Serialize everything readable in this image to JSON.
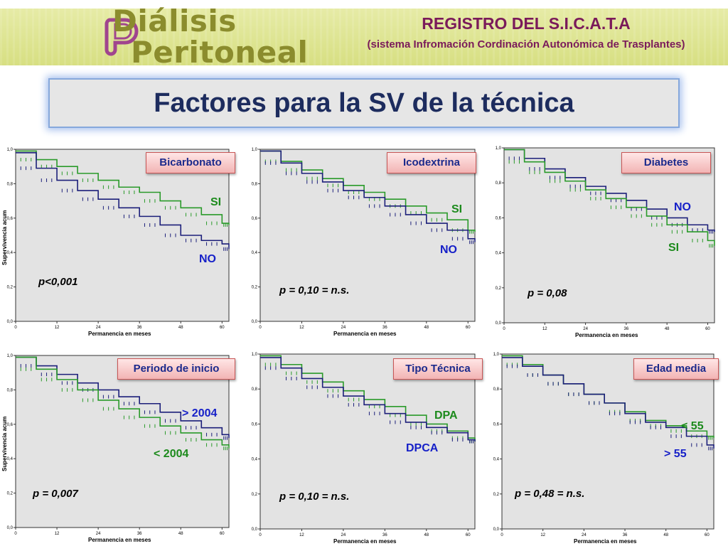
{
  "header": {
    "logo_line1": "Diálisis",
    "logo_line2": "Peritoneal",
    "registry_title": "REGISTRO DEL S.I.C.A.T.A",
    "registry_subtitle": "(sistema Infromación Cordinación Autonómica de Trasplantes)"
  },
  "main_title": "Factores para la SV de la técnica",
  "colors": {
    "green_series": "#2a9a2a",
    "blue_series": "#1c1f7a",
    "blue_text": "#1620c8",
    "green_text": "#1c8a1c",
    "plot_bg": "#e3e3e3"
  },
  "chart_data": [
    {
      "type": "line",
      "title": "Bicarbonato",
      "ylabel": "Supervivencia acum",
      "xlabel": "Permanencia en meses",
      "xlim": [
        0,
        62
      ],
      "ylim": [
        0,
        1.0
      ],
      "xticks": [
        "0",
        "12",
        "24",
        "36",
        "48",
        "60"
      ],
      "yticks": [
        "0,0",
        "0,2",
        "0,4",
        "0,6",
        "0,8",
        "1,0"
      ],
      "p_value": "p<0,001",
      "series": [
        {
          "name": "SI",
          "color": "green",
          "x": [
            0,
            6,
            12,
            18,
            24,
            30,
            36,
            42,
            48,
            54,
            60,
            62
          ],
          "y": [
            0.99,
            0.94,
            0.9,
            0.86,
            0.82,
            0.78,
            0.75,
            0.7,
            0.66,
            0.62,
            0.57,
            0.56
          ]
        },
        {
          "name": "NO",
          "color": "blue",
          "x": [
            0,
            6,
            12,
            18,
            24,
            30,
            36,
            42,
            48,
            54,
            60,
            62
          ],
          "y": [
            0.98,
            0.89,
            0.82,
            0.76,
            0.71,
            0.66,
            0.61,
            0.56,
            0.5,
            0.47,
            0.45,
            0.42
          ]
        }
      ]
    },
    {
      "type": "line",
      "title": "Icodextrina",
      "ylabel": "",
      "xlabel": "Permanencia en meses",
      "xlim": [
        0,
        62
      ],
      "ylim": [
        0,
        1.0
      ],
      "xticks": [
        "0",
        "12",
        "24",
        "36",
        "48",
        "60"
      ],
      "yticks": [
        "0,0",
        "0,2",
        "0,4",
        "0,6",
        "0,8",
        "1,0"
      ],
      "p_value": "p = 0,10 = n.s.",
      "series": [
        {
          "name": "SI",
          "color": "green",
          "x": [
            0,
            6,
            12,
            18,
            24,
            30,
            36,
            42,
            48,
            54,
            60,
            62
          ],
          "y": [
            0.99,
            0.93,
            0.88,
            0.83,
            0.79,
            0.75,
            0.71,
            0.67,
            0.63,
            0.59,
            0.53,
            0.52
          ]
        },
        {
          "name": "NO",
          "color": "blue",
          "x": [
            0,
            6,
            12,
            18,
            24,
            30,
            36,
            42,
            48,
            54,
            60,
            62
          ],
          "y": [
            0.99,
            0.92,
            0.86,
            0.81,
            0.76,
            0.72,
            0.67,
            0.62,
            0.57,
            0.53,
            0.48,
            0.46
          ]
        }
      ]
    },
    {
      "type": "line",
      "title": "Diabetes",
      "ylabel": "",
      "xlabel": "Permanencia en meses",
      "xlim": [
        0,
        62
      ],
      "ylim": [
        0,
        1.0
      ],
      "xticks": [
        "0",
        "12",
        "24",
        "36",
        "48",
        "60"
      ],
      "yticks": [
        "0,0",
        "0,2",
        "0,4",
        "0,6",
        "0,8",
        "1,0"
      ],
      "p_value": "p = 0,08",
      "series": [
        {
          "name": "NO",
          "color": "blue",
          "x": [
            0,
            6,
            12,
            18,
            24,
            30,
            36,
            42,
            48,
            54,
            60,
            62
          ],
          "y": [
            0.99,
            0.94,
            0.88,
            0.83,
            0.78,
            0.74,
            0.7,
            0.65,
            0.6,
            0.56,
            0.53,
            0.52
          ]
        },
        {
          "name": "SI",
          "color": "green",
          "x": [
            0,
            6,
            12,
            18,
            24,
            30,
            36,
            42,
            48,
            54,
            60,
            62
          ],
          "y": [
            0.99,
            0.92,
            0.86,
            0.81,
            0.76,
            0.71,
            0.66,
            0.61,
            0.56,
            0.52,
            0.47,
            0.44
          ]
        }
      ]
    },
    {
      "type": "line",
      "title": "Periodo de inicio",
      "ylabel": "Supervivencia acum",
      "xlabel": "Permanencia en meses",
      "xlim": [
        0,
        62
      ],
      "ylim": [
        0,
        1.0
      ],
      "xticks": [
        "0",
        "12",
        "24",
        "36",
        "48",
        "60"
      ],
      "yticks": [
        "0,0",
        "0,2",
        "0,4",
        "0,6",
        "0,8",
        "1,0"
      ],
      "p_value": "p = 0,007",
      "series": [
        {
          "name": "> 2004",
          "color": "blue",
          "x": [
            0,
            6,
            12,
            18,
            24,
            30,
            36,
            42,
            48,
            54,
            60,
            62
          ],
          "y": [
            0.99,
            0.94,
            0.89,
            0.84,
            0.8,
            0.76,
            0.72,
            0.67,
            0.62,
            0.58,
            0.54,
            0.52
          ]
        },
        {
          "name": "< 2004",
          "color": "green",
          "x": [
            0,
            6,
            12,
            18,
            24,
            30,
            36,
            42,
            48,
            54,
            60,
            62
          ],
          "y": [
            0.99,
            0.92,
            0.86,
            0.8,
            0.74,
            0.69,
            0.64,
            0.59,
            0.55,
            0.51,
            0.48,
            0.46
          ]
        }
      ]
    },
    {
      "type": "line",
      "title": "Tipo Técnica",
      "ylabel": "",
      "xlabel": "Permanencia en meses",
      "xlim": [
        0,
        62
      ],
      "ylim": [
        0,
        1.0
      ],
      "xticks": [
        "0",
        "12",
        "24",
        "36",
        "48",
        "60"
      ],
      "yticks": [
        "0,0",
        "0,2",
        "0,4",
        "0,6",
        "0,8",
        "1,0"
      ],
      "p_value": "p = 0,10 = n.s.",
      "series": [
        {
          "name": "DPA",
          "color": "green",
          "x": [
            0,
            6,
            12,
            18,
            24,
            30,
            36,
            42,
            48,
            54,
            60,
            62
          ],
          "y": [
            0.99,
            0.94,
            0.89,
            0.84,
            0.79,
            0.74,
            0.7,
            0.65,
            0.6,
            0.56,
            0.52,
            0.5
          ]
        },
        {
          "name": "DPCA",
          "color": "blue",
          "x": [
            0,
            6,
            12,
            18,
            24,
            30,
            36,
            42,
            48,
            54,
            60,
            62
          ],
          "y": [
            0.98,
            0.92,
            0.86,
            0.81,
            0.76,
            0.71,
            0.66,
            0.61,
            0.58,
            0.55,
            0.51,
            0.5
          ]
        }
      ]
    },
    {
      "type": "line",
      "title": "Edad media",
      "ylabel": "",
      "xlabel": "Permanencia en meses",
      "xlim": [
        0,
        62
      ],
      "ylim": [
        0,
        1.0
      ],
      "xticks": [
        "0",
        "12",
        "24",
        "36",
        "48",
        "60"
      ],
      "yticks": [
        "0,0",
        "0,2",
        "0,4",
        "0,6",
        "0,8",
        "1,0"
      ],
      "p_value": "p = 0,48 = n.s.",
      "series": [
        {
          "name": "< 55",
          "color": "green",
          "x": [
            0,
            6,
            12,
            18,
            24,
            30,
            36,
            42,
            48,
            54,
            60,
            62
          ],
          "y": [
            0.99,
            0.94,
            0.88,
            0.83,
            0.77,
            0.72,
            0.67,
            0.62,
            0.59,
            0.56,
            0.53,
            0.52
          ]
        },
        {
          "name": "> 55",
          "color": "blue",
          "x": [
            0,
            6,
            12,
            18,
            24,
            30,
            36,
            42,
            48,
            54,
            60,
            62
          ],
          "y": [
            0.98,
            0.93,
            0.88,
            0.83,
            0.77,
            0.72,
            0.66,
            0.61,
            0.58,
            0.53,
            0.48,
            0.46
          ]
        }
      ]
    }
  ]
}
